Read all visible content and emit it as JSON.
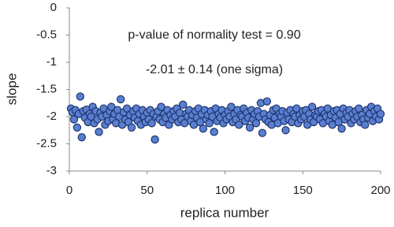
{
  "chart_data": {
    "type": "scatter",
    "x_label": "replica number",
    "y_label": "slope",
    "annotations": [
      "p-value of normality test = 0.90",
      "-2.01 ± 0.14 (one sigma)"
    ],
    "xlim": [
      0,
      200
    ],
    "xticks": [
      0,
      50,
      100,
      150,
      200
    ],
    "ylim": [
      -3,
      0
    ],
    "yticks": [
      0,
      -0.5,
      -1,
      -1.5,
      -2,
      -2.5,
      -3
    ],
    "grid": false,
    "series": [
      {
        "color": "#5a7fd0",
        "x": [
          1,
          2,
          3,
          4,
          5,
          6,
          7,
          8,
          9,
          10,
          11,
          12,
          13,
          14,
          15,
          16,
          17,
          18,
          19,
          20,
          21,
          22,
          23,
          24,
          25,
          26,
          27,
          28,
          29,
          30,
          31,
          32,
          33,
          34,
          35,
          36,
          37,
          38,
          39,
          40,
          41,
          42,
          43,
          44,
          45,
          46,
          47,
          48,
          49,
          50,
          51,
          52,
          53,
          54,
          55,
          56,
          57,
          58,
          59,
          60,
          61,
          62,
          63,
          64,
          65,
          66,
          67,
          68,
          69,
          70,
          71,
          72,
          73,
          74,
          75,
          76,
          77,
          78,
          79,
          80,
          81,
          82,
          83,
          84,
          85,
          86,
          87,
          88,
          89,
          90,
          91,
          92,
          93,
          94,
          95,
          96,
          97,
          98,
          99,
          100,
          101,
          102,
          103,
          104,
          105,
          106,
          107,
          108,
          109,
          110,
          111,
          112,
          113,
          114,
          115,
          116,
          117,
          118,
          119,
          120,
          121,
          122,
          123,
          124,
          125,
          126,
          127,
          128,
          129,
          130,
          131,
          132,
          133,
          134,
          135,
          136,
          137,
          138,
          139,
          140,
          141,
          142,
          143,
          144,
          145,
          146,
          147,
          148,
          149,
          150,
          151,
          152,
          153,
          154,
          155,
          156,
          157,
          158,
          159,
          160,
          161,
          162,
          163,
          164,
          165,
          166,
          167,
          168,
          169,
          170,
          171,
          172,
          173,
          174,
          175,
          176,
          177,
          178,
          179,
          180,
          181,
          182,
          183,
          184,
          185,
          186,
          187,
          188,
          189,
          190,
          191,
          192,
          193,
          194,
          195,
          196,
          197,
          198,
          199,
          200
        ],
        "values": [
          -1.85,
          -1.92,
          -2.05,
          -1.88,
          -2.2,
          -1.95,
          -1.63,
          -2.38,
          -1.9,
          -2.02,
          -1.87,
          -2.1,
          -1.95,
          -2.0,
          -1.82,
          -2.12,
          -1.9,
          -2.05,
          -2.28,
          -1.93,
          -2.0,
          -1.85,
          -2.15,
          -1.97,
          -2.08,
          -1.9,
          -1.82,
          -2.05,
          -1.95,
          -2.12,
          -1.88,
          -2.0,
          -1.68,
          -2.15,
          -1.92,
          -2.05,
          -1.85,
          -2.1,
          -1.97,
          -2.2,
          -1.9,
          -2.02,
          -1.85,
          -2.08,
          -1.95,
          -2.15,
          -1.88,
          -2.0,
          -2.1,
          -1.93,
          -2.05,
          -1.88,
          -2.12,
          -1.95,
          -2.42,
          -2.0,
          -1.9,
          -2.05,
          -1.82,
          -2.1,
          -1.95,
          -2.02,
          -1.88,
          -2.15,
          -1.97,
          -2.05,
          -1.9,
          -2.0,
          -1.85,
          -2.1,
          -1.93,
          -2.05,
          -1.78,
          -2.12,
          -1.95,
          -2.0,
          -1.88,
          -2.08,
          -1.97,
          -2.15,
          -1.9,
          -2.02,
          -1.85,
          -2.1,
          -1.95,
          -2.22,
          -1.88,
          -2.05,
          -1.97,
          -2.12,
          -1.9,
          -2.0,
          -2.28,
          -1.85,
          -2.08,
          -1.95,
          -2.02,
          -1.88,
          -2.12,
          -1.97,
          -2.05,
          -1.9,
          -2.0,
          -1.82,
          -2.1,
          -1.95,
          -2.05,
          -1.88,
          -2.15,
          -1.97,
          -2.0,
          -1.85,
          -2.08,
          -1.93,
          -2.02,
          -2.2,
          -1.88,
          -2.05,
          -1.95,
          -2.12,
          -1.9,
          -2.0,
          -1.75,
          -2.3,
          -1.95,
          -2.05,
          -1.72,
          -2.1,
          -1.97,
          -2.15,
          -1.88,
          -2.02,
          -1.85,
          -2.12,
          -1.95,
          -2.0,
          -1.9,
          -2.08,
          -2.25,
          -1.93,
          -2.05,
          -1.88,
          -2.1,
          -1.95,
          -2.0,
          -1.85,
          -2.12,
          -1.97,
          -2.05,
          -1.9,
          -2.0,
          -1.88,
          -2.15,
          -1.95,
          -2.05,
          -1.82,
          -2.1,
          -1.97,
          -2.0,
          -1.9,
          -2.05,
          -1.88,
          -2.12,
          -1.95,
          -2.0,
          -1.85,
          -2.08,
          -1.97,
          -2.15,
          -1.9,
          -2.02,
          -1.88,
          -2.1,
          -1.95,
          -2.22,
          -1.85,
          -2.05,
          -1.93,
          -2.0,
          -1.88,
          -2.12,
          -1.95,
          -2.05,
          -1.9,
          -2.0,
          -1.85,
          -2.1,
          -1.97,
          -2.05,
          -2.15,
          -1.88,
          -2.02,
          -1.95,
          -1.82,
          -2.08,
          -1.9,
          -2.0,
          -1.85,
          -2.05,
          -1.95
        ]
      }
    ]
  }
}
